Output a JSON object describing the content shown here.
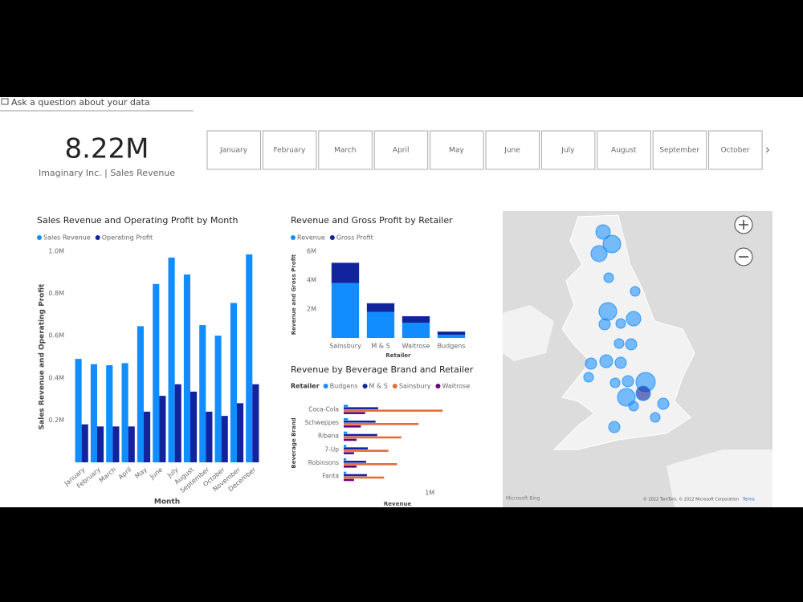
{
  "qa_prompt": "Ask a question about your data",
  "kpi": {
    "value": "8.22M",
    "caption": "Imaginary Inc. | Sales Revenue"
  },
  "month_slicer": [
    "January",
    "February",
    "March",
    "April",
    "May",
    "June",
    "July",
    "August",
    "September",
    "October"
  ],
  "chart_data": [
    {
      "type": "bar",
      "title": "Sales Revenue and Operating Profit by Month",
      "x_label": "Month",
      "y_label": "Sales Revenue and Operating Profit",
      "categories": [
        "January",
        "February",
        "March",
        "April",
        "May",
        "June",
        "July",
        "August",
        "September",
        "October",
        "November",
        "December"
      ],
      "series": [
        {
          "name": "Sales Revenue",
          "color": "#118dff",
          "values": [
            490000,
            465000,
            460000,
            470000,
            645000,
            845000,
            970000,
            890000,
            650000,
            600000,
            755000,
            985000
          ]
        },
        {
          "name": "Operating Profit",
          "color": "#12239e",
          "values": [
            180000,
            170000,
            170000,
            170000,
            240000,
            315000,
            370000,
            335000,
            240000,
            220000,
            280000,
            370000
          ]
        }
      ],
      "ylim": [
        0,
        1000000
      ],
      "yticks": [
        {
          "value": 200000,
          "label": "0.2M"
        },
        {
          "value": 400000,
          "label": "0.4M"
        },
        {
          "value": 600000,
          "label": "0.6M"
        },
        {
          "value": 800000,
          "label": "0.8M"
        },
        {
          "value": 1000000,
          "label": "1.0M"
        }
      ],
      "grid": false
    },
    {
      "type": "stacked_bar",
      "title": "Revenue and Gross Profit by Retailer",
      "x_label": "Retailer",
      "y_label": "Revenue and Gross Profit",
      "categories": [
        "Sainsbury",
        "M & S",
        "Waitrose",
        "Budgens"
      ],
      "series": [
        {
          "name": "Revenue",
          "color": "#118dff",
          "values": [
            3800000,
            1800000,
            1050000,
            220000
          ]
        },
        {
          "name": "Gross Profit",
          "color": "#12239e",
          "values": [
            1400000,
            600000,
            450000,
            220000
          ]
        }
      ],
      "ylim": [
        0,
        6000000
      ],
      "yticks": [
        {
          "value": 2000000,
          "label": "2M"
        },
        {
          "value": 4000000,
          "label": "4M"
        },
        {
          "value": 6000000,
          "label": "6M"
        }
      ],
      "grid": false
    },
    {
      "type": "hbar",
      "title": "Revenue by Beverage Brand and Retailer",
      "legend_title": "Retailer",
      "x_label": "Revenue",
      "y_label": "Beverage Brand",
      "categories": [
        "Coca-Cola",
        "Schweppes",
        "Ribena",
        "7-Up",
        "Robinsons",
        "Fanta"
      ],
      "series": [
        {
          "name": "Budgens",
          "color": "#118dff",
          "values": [
            50000,
            50000,
            40000,
            30000,
            30000,
            30000
          ]
        },
        {
          "name": "M & S",
          "color": "#12239e",
          "values": [
            400000,
            370000,
            390000,
            280000,
            260000,
            270000
          ]
        },
        {
          "name": "Sainsbury",
          "color": "#e66c37",
          "values": [
            1150000,
            870000,
            670000,
            520000,
            620000,
            470000
          ]
        },
        {
          "name": "Waitrose",
          "color": "#6b007b",
          "values": [
            250000,
            200000,
            150000,
            120000,
            150000,
            120000
          ]
        }
      ],
      "xlim": [
        0,
        1250000
      ],
      "xticks": [
        {
          "value": 1000000,
          "label": "1M"
        }
      ],
      "grid": false
    }
  ],
  "map": {
    "provider": "Microsoft Bing",
    "attribution": "© 2022 TomTom, © 2022 Microsoft Corporation",
    "terms": "Terms"
  }
}
